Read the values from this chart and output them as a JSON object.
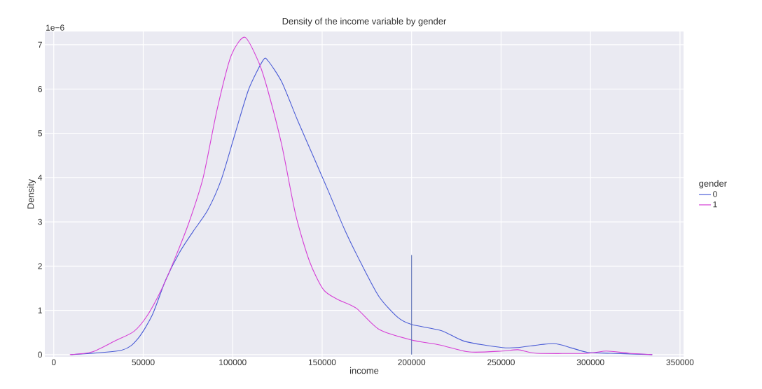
{
  "chart_data": {
    "type": "line",
    "title": "Density of the income variable by gender",
    "xlabel": "income",
    "ylabel": "Density",
    "legend_title": "gender",
    "annotations": [
      "1e−6"
    ],
    "xlim": [
      -5000,
      352000
    ],
    "ylim": [
      -0.05,
      7.3
    ],
    "xticks": [
      0,
      50000,
      100000,
      150000,
      200000,
      250000,
      300000,
      350000
    ],
    "yticks": [
      0,
      1,
      2,
      3,
      4,
      5,
      6,
      7
    ],
    "grid": true,
    "legend": "right",
    "marker": "none",
    "line_style": "solid",
    "series": [
      {
        "name": "0",
        "color": "#4a5cd6",
        "x": [
          9700,
          38000,
          47000,
          55000,
          62500,
          70300,
          78000,
          86000,
          93600,
          101400,
          109000,
          117000,
          119700,
          127400,
          136400,
          145700,
          153500,
          162400,
          171300,
          181800,
          192300,
          200000,
          216800,
          229600,
          250600,
          259500,
          279000,
          289400,
          298400,
          311200,
          334500
        ],
        "values": [
          0,
          0.1,
          0.36,
          0.89,
          1.68,
          2.31,
          2.79,
          3.26,
          3.95,
          5.0,
          6.0,
          6.65,
          6.64,
          6.16,
          5.28,
          4.42,
          3.69,
          2.84,
          2.1,
          1.31,
          0.84,
          0.68,
          0.54,
          0.3,
          0.16,
          0.16,
          0.25,
          0.15,
          0.05,
          0.03,
          0
        ]
      },
      {
        "name": "1",
        "color": "#d63fd6",
        "x": [
          9000,
          21400,
          34200,
          44700,
          52400,
          60200,
          68000,
          75700,
          83500,
          91300,
          99100,
          106800,
          114600,
          119700,
          127400,
          135200,
          143000,
          150700,
          158500,
          169000,
          181800,
          200000,
          215600,
          232300,
          250600,
          259500,
          270000,
          298400,
          308800,
          321700,
          334500
        ],
        "values": [
          0,
          0.06,
          0.31,
          0.52,
          0.89,
          1.47,
          2.2,
          3.0,
          4.0,
          5.54,
          6.75,
          7.17,
          6.6,
          5.96,
          4.74,
          3.16,
          2.1,
          1.47,
          1.25,
          1.05,
          0.57,
          0.33,
          0.22,
          0.06,
          0.08,
          0.11,
          0.03,
          0.03,
          0.08,
          0.03,
          0
        ]
      },
      {
        "type": "line",
        "color": "#5b6fb5",
        "x": [
          200000,
          200000
        ],
        "values": [
          0,
          2.25
        ]
      }
    ]
  }
}
